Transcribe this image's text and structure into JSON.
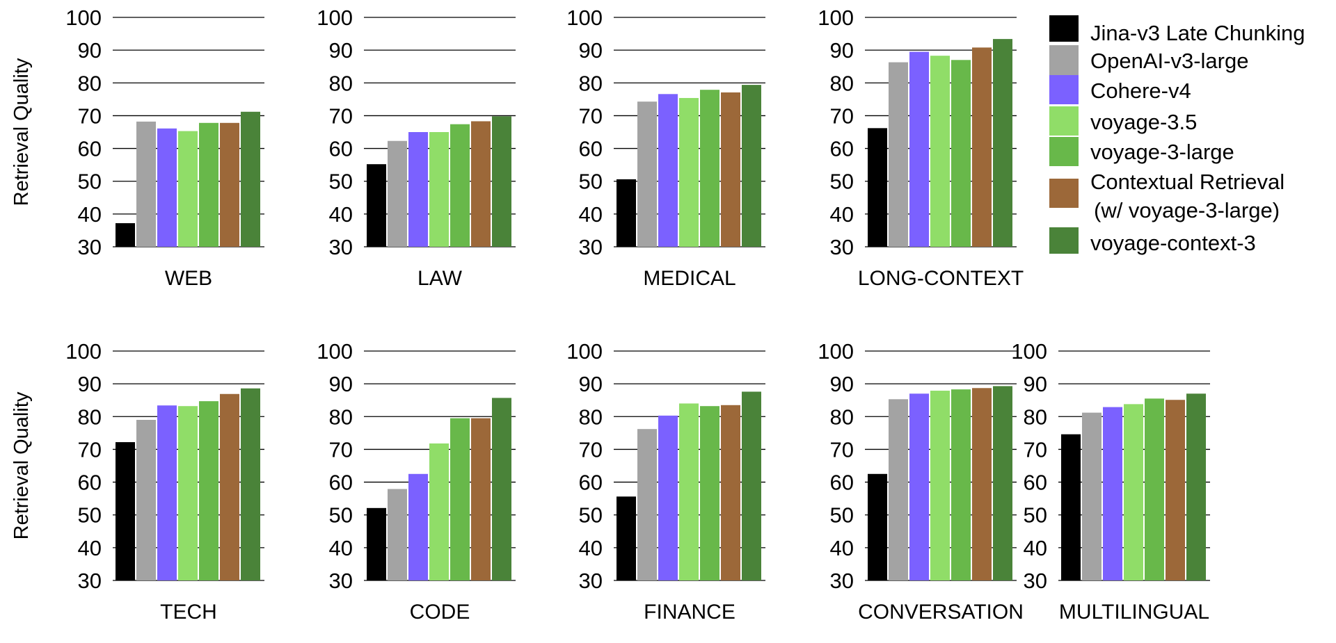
{
  "chart_data": {
    "type": "bar",
    "ylabel": "Retrieval Quality",
    "ylim": [
      30,
      100
    ],
    "yticks": [
      30,
      40,
      50,
      60,
      70,
      80,
      90,
      100
    ],
    "grid": true,
    "legend_position": "top-right",
    "series": [
      {
        "name": "Jina-v3 Late Chunking",
        "color": "#000000"
      },
      {
        "name": "OpenAI-v3-large",
        "color": "#a3a3a3"
      },
      {
        "name": "Cohere-v4",
        "color": "#7b61ff"
      },
      {
        "name": "voyage-3.5",
        "color": "#90dd68"
      },
      {
        "name": "voyage-3-large",
        "color": "#68b84a"
      },
      {
        "name": "Contextual Retrieval\n(w/ voyage-3-large)",
        "color": "#9c6839"
      },
      {
        "name": "voyage-context-3",
        "color": "#4a8339"
      }
    ],
    "panels": [
      {
        "category": "WEB",
        "values": [
          37.2,
          68.2,
          66.1,
          65.3,
          67.8,
          67.8,
          71.2
        ]
      },
      {
        "category": "LAW",
        "values": [
          55.2,
          62.3,
          65.0,
          65.0,
          67.4,
          68.3,
          69.8
        ]
      },
      {
        "category": "MEDICAL",
        "values": [
          50.6,
          74.3,
          76.6,
          75.4,
          77.9,
          77.1,
          79.4
        ]
      },
      {
        "category": "LONG-CONTEXT",
        "values": [
          66.2,
          86.3,
          89.5,
          88.3,
          87.0,
          90.8,
          93.4
        ]
      },
      {
        "category": "TECH",
        "values": [
          72.2,
          79.0,
          83.4,
          83.2,
          84.7,
          86.9,
          88.6
        ]
      },
      {
        "category": "CODE",
        "values": [
          52.1,
          57.9,
          62.5,
          71.8,
          79.5,
          79.5,
          85.7
        ]
      },
      {
        "category": "FINANCE",
        "values": [
          55.6,
          76.2,
          80.3,
          84.0,
          83.2,
          83.5,
          87.6
        ]
      },
      {
        "category": "CONVERSATION",
        "values": [
          62.5,
          85.3,
          87.0,
          87.9,
          88.3,
          88.7,
          89.3
        ]
      },
      {
        "category": "MULTILINGUAL",
        "values": [
          74.6,
          81.2,
          82.9,
          83.8,
          85.5,
          85.1,
          87.0
        ]
      }
    ]
  }
}
